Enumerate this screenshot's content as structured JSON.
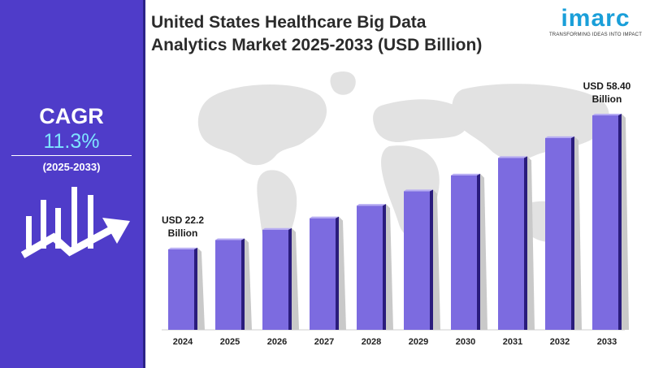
{
  "title_line1": "United States Healthcare Big Data",
  "title_line2": "Analytics Market 2025-2033 (USD Billion)",
  "logo": {
    "word": "imarc",
    "tagline": "TRANSFORMING IDEAS INTO IMPACT"
  },
  "cagr": {
    "label": "CAGR",
    "value": "11.3%",
    "period": "(2025-2033)"
  },
  "colors": {
    "sidebar": "#4f3cc9",
    "bar": "#7c6be0",
    "cagr_value": "#7fe3ff",
    "logo": "#1a9fd9"
  },
  "icons": [
    "growth-chart-icon"
  ],
  "chart_data": {
    "type": "bar",
    "categories": [
      "2024",
      "2025",
      "2026",
      "2027",
      "2028",
      "2029",
      "2030",
      "2031",
      "2032",
      "2033"
    ],
    "values": [
      22.2,
      24.7,
      27.5,
      30.6,
      34.0,
      37.9,
      42.2,
      46.9,
      52.3,
      58.4
    ],
    "ylim": [
      0,
      65
    ],
    "annotations": [
      {
        "category": "2024",
        "line1": "USD 22.2",
        "line2": "Billion"
      },
      {
        "category": "2033",
        "line1": "USD 58.40",
        "line2": "Billion"
      }
    ],
    "grid": false,
    "legend": "none"
  }
}
